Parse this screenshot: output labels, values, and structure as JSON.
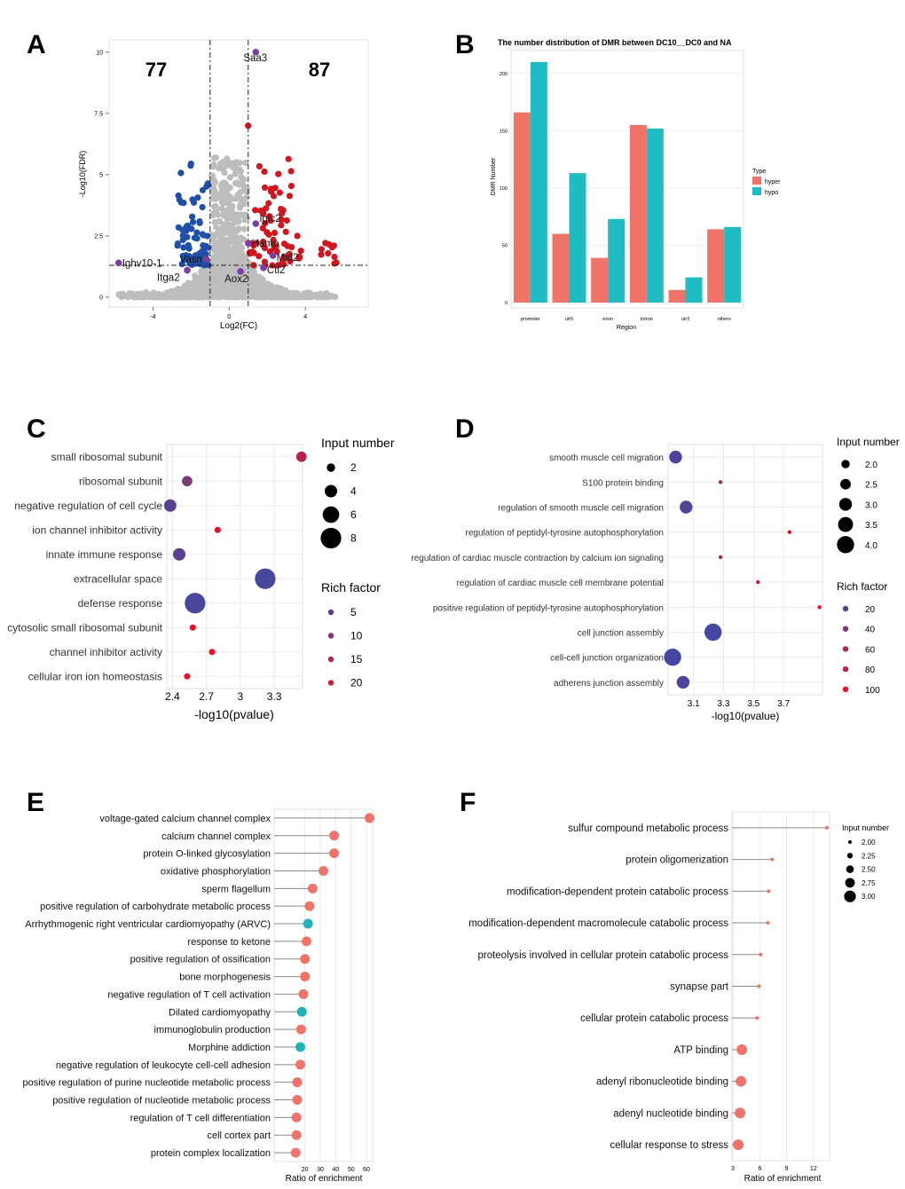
{
  "colors": {
    "up": "#d0171f",
    "down": "#1f4fa8",
    "ns": "#bdbdbd",
    "label_pt": "#7b3fa0",
    "hyper": "#f0736a",
    "hypo": "#1fbcc4",
    "rich_lo": "#3b4ba8",
    "rich_hi": "#e8132a",
    "lollipop": "#f0736a",
    "lollipop_alt": "#1fb3b8",
    "grid": "#e6e6e6"
  },
  "panels": {
    "A": "A",
    "B": "B",
    "C": "C",
    "D": "D",
    "E": "E",
    "F": "F"
  },
  "chart_data": [
    {
      "panel": "A",
      "type": "scatter",
      "xlabel": "Log2(FC)",
      "ylabel": "-Log10(FDR)",
      "xlim": [
        -6.3,
        7.3
      ],
      "ylim": [
        -0.4,
        10.5
      ],
      "xticks": [
        -4,
        0,
        4
      ],
      "yticks": [
        0.0,
        2.5,
        5.0,
        7.5,
        10.0
      ],
      "vlines": [
        -1,
        1
      ],
      "hline": 1.3,
      "counts": {
        "down": "77",
        "up": "87"
      },
      "labeled_points": [
        {
          "label": "Saa3",
          "x": 1.4,
          "y": 10.0
        },
        {
          "label": "Iglc2",
          "x": 1.4,
          "y": 3.0
        },
        {
          "label": "Hamp",
          "x": 1.0,
          "y": 2.2
        },
        {
          "label": "Mid2",
          "x": 2.3,
          "y": 1.7
        },
        {
          "label": "Vasn",
          "x": -1.2,
          "y": 1.55
        },
        {
          "label": "Ighv10-1",
          "x": -5.8,
          "y": 1.4
        },
        {
          "label": "Itga2",
          "x": -2.2,
          "y": 1.1
        },
        {
          "label": "Aox2",
          "x": 0.6,
          "y": 1.05
        },
        {
          "label": "Ctl2",
          "x": 1.8,
          "y": 1.2
        }
      ]
    },
    {
      "panel": "B",
      "type": "bar",
      "title": "The number distribution of DMR between DC10__DC0 and NA",
      "xlabel": "Region",
      "ylabel": "DMR Number",
      "ylim": [
        0,
        220
      ],
      "yticks": [
        0,
        50,
        100,
        150,
        200
      ],
      "categories": [
        "promoter",
        "utr5",
        "exon",
        "intron",
        "utr3",
        "others"
      ],
      "series": [
        {
          "name": "hyper",
          "values": [
            166,
            60,
            39,
            155,
            11,
            64
          ]
        },
        {
          "name": "hypo",
          "values": [
            210,
            113,
            73,
            152,
            22,
            66
          ]
        }
      ],
      "legend_title": "Type",
      "legend_position": "right"
    },
    {
      "panel": "C",
      "type": "scatter",
      "xlabel": "-log10(pvalue)",
      "xlim": [
        2.35,
        3.55
      ],
      "xticks": [
        2.4,
        2.7,
        3.0,
        3.3
      ],
      "terms": [
        {
          "term": "small ribosomal subunit",
          "p": 3.54,
          "n": 3,
          "rich": 16
        },
        {
          "term": "ribosomal subunit",
          "p": 2.53,
          "n": 3,
          "rich": 8
        },
        {
          "term": "negative regulation of cell cycle",
          "p": 2.38,
          "n": 4,
          "rich": 4
        },
        {
          "term": "ion channel inhibitor activity",
          "p": 2.8,
          "n": 1,
          "rich": 22
        },
        {
          "term": "innate immune response",
          "p": 2.46,
          "n": 4,
          "rich": 4
        },
        {
          "term": "extracellular space",
          "p": 3.22,
          "n": 8,
          "rich": 2
        },
        {
          "term": "defense response",
          "p": 2.6,
          "n": 8,
          "rich": 2
        },
        {
          "term": "cytosolic small ribosomal subunit",
          "p": 2.58,
          "n": 1,
          "rich": 22
        },
        {
          "term": "channel inhibitor activity",
          "p": 2.75,
          "n": 1,
          "rich": 22
        },
        {
          "term": "cellular iron ion homeostasis",
          "p": 2.53,
          "n": 1,
          "rich": 22
        }
      ],
      "legend_size_title": "Input number",
      "size_breaks": [
        2,
        4,
        6,
        8
      ],
      "legend_color_title": "Rich factor",
      "color_breaks": [
        5,
        10,
        15,
        20
      ]
    },
    {
      "panel": "D",
      "type": "scatter",
      "xlabel": "-log10(pvalue)",
      "xlim": [
        2.93,
        3.96
      ],
      "xticks": [
        3.1,
        3.3,
        3.5,
        3.7
      ],
      "terms": [
        {
          "term": "smooth muscle cell migration",
          "p": 2.98,
          "n": 3,
          "rich": 10
        },
        {
          "term": "S100 protein binding",
          "p": 3.28,
          "n": 1,
          "rich": 60
        },
        {
          "term": "regulation of smooth muscle cell migration",
          "p": 3.05,
          "n": 3,
          "rich": 15
        },
        {
          "term": "regulation of peptidyl-tyrosine autophosphorylation",
          "p": 3.74,
          "n": 1,
          "rich": 100
        },
        {
          "term": "regulation of cardiac muscle contraction by calcium ion signaling",
          "p": 3.28,
          "n": 1,
          "rich": 60
        },
        {
          "term": "regulation of cardiac muscle cell membrane potential",
          "p": 3.53,
          "n": 1,
          "rich": 80
        },
        {
          "term": "positive regulation of peptidyl-tyrosine autophosphorylation",
          "p": 3.94,
          "n": 1,
          "rich": 100
        },
        {
          "term": "cell junction assembly",
          "p": 3.23,
          "n": 4,
          "rich": 5
        },
        {
          "term": "cell-cell junction organization",
          "p": 2.96,
          "n": 4,
          "rich": 5
        },
        {
          "term": "adherens junction assembly",
          "p": 3.03,
          "n": 3,
          "rich": 10
        }
      ],
      "legend_size_title": "Input number",
      "size_breaks": [
        "2.0",
        "2.5",
        "3.0",
        "3.5",
        "4.0"
      ],
      "legend_color_title": "Rich factor",
      "color_breaks": [
        20,
        40,
        60,
        80,
        100
      ]
    },
    {
      "panel": "E",
      "type": "lollipop",
      "xlabel": "Ratio of enrichment",
      "xlim": [
        0,
        64
      ],
      "xticks": [
        20,
        30,
        40,
        50,
        60
      ],
      "terms": [
        {
          "term": "voltage-gated calcium channel complex",
          "v": 62,
          "alt": false
        },
        {
          "term": "calcium channel complex",
          "v": 39,
          "alt": false
        },
        {
          "term": "protein O-linked glycosylation",
          "v": 39,
          "alt": false
        },
        {
          "term": "oxidative phosphorylation",
          "v": 32,
          "alt": false
        },
        {
          "term": "sperm flagellum",
          "v": 25,
          "alt": false
        },
        {
          "term": "positive regulation of carbohydrate metabolic process",
          "v": 23,
          "alt": false
        },
        {
          "term": "Arrhythmogenic right ventricular cardiomyopathy (ARVC)",
          "v": 22,
          "alt": true
        },
        {
          "term": "response to ketone",
          "v": 21,
          "alt": false
        },
        {
          "term": "positive regulation of ossification",
          "v": 20,
          "alt": false
        },
        {
          "term": "bone morphogenesis",
          "v": 20,
          "alt": false
        },
        {
          "term": "negative regulation of T cell activation",
          "v": 19,
          "alt": false
        },
        {
          "term": "Dilated cardiomyopathy",
          "v": 18,
          "alt": true
        },
        {
          "term": "immunoglobulin production",
          "v": 17.5,
          "alt": false
        },
        {
          "term": "Morphine addiction",
          "v": 17,
          "alt": true
        },
        {
          "term": "negative regulation of leukocyte cell-cell adhesion",
          "v": 17,
          "alt": false
        },
        {
          "term": "positive regulation of purine nucleotide metabolic process",
          "v": 15,
          "alt": false
        },
        {
          "term": "positive regulation of nucleotide metabolic process",
          "v": 15,
          "alt": false
        },
        {
          "term": "regulation of T cell differentiation",
          "v": 14.5,
          "alt": false
        },
        {
          "term": "cell cortex part",
          "v": 14.5,
          "alt": false
        },
        {
          "term": "protein complex localization",
          "v": 14,
          "alt": false
        }
      ]
    },
    {
      "panel": "F",
      "type": "lollipop",
      "xlabel": "Ratio of enrichment",
      "xlim": [
        2.9,
        13.8
      ],
      "xticks": [
        3,
        6,
        9,
        12
      ],
      "terms": [
        {
          "term": "sulfur compound metabolic process",
          "v": 13.5,
          "n": 2.0
        },
        {
          "term": "protein oligomerization",
          "v": 7.4,
          "n": 2.0
        },
        {
          "term": "modification-dependent protein catabolic process",
          "v": 7.0,
          "n": 2.0
        },
        {
          "term": "modification-dependent macromolecule catabolic process",
          "v": 6.9,
          "n": 2.0
        },
        {
          "term": "proteolysis involved in cellular protein catabolic process",
          "v": 6.1,
          "n": 2.0
        },
        {
          "term": "synapse part",
          "v": 5.9,
          "n": 2.0
        },
        {
          "term": "cellular protein catabolic process",
          "v": 5.7,
          "n": 2.0
        },
        {
          "term": "ATP binding",
          "v": 4.0,
          "n": 3.0
        },
        {
          "term": "adenyl ribonucleotide binding",
          "v": 3.9,
          "n": 3.0
        },
        {
          "term": "adenyl nucleotide binding",
          "v": 3.8,
          "n": 3.0
        },
        {
          "term": "cellular response to stress",
          "v": 3.6,
          "n": 3.0
        }
      ],
      "legend_size_title": "Input number",
      "size_breaks": [
        "2.00",
        "2.25",
        "2.50",
        "2.75",
        "3.00"
      ]
    }
  ]
}
